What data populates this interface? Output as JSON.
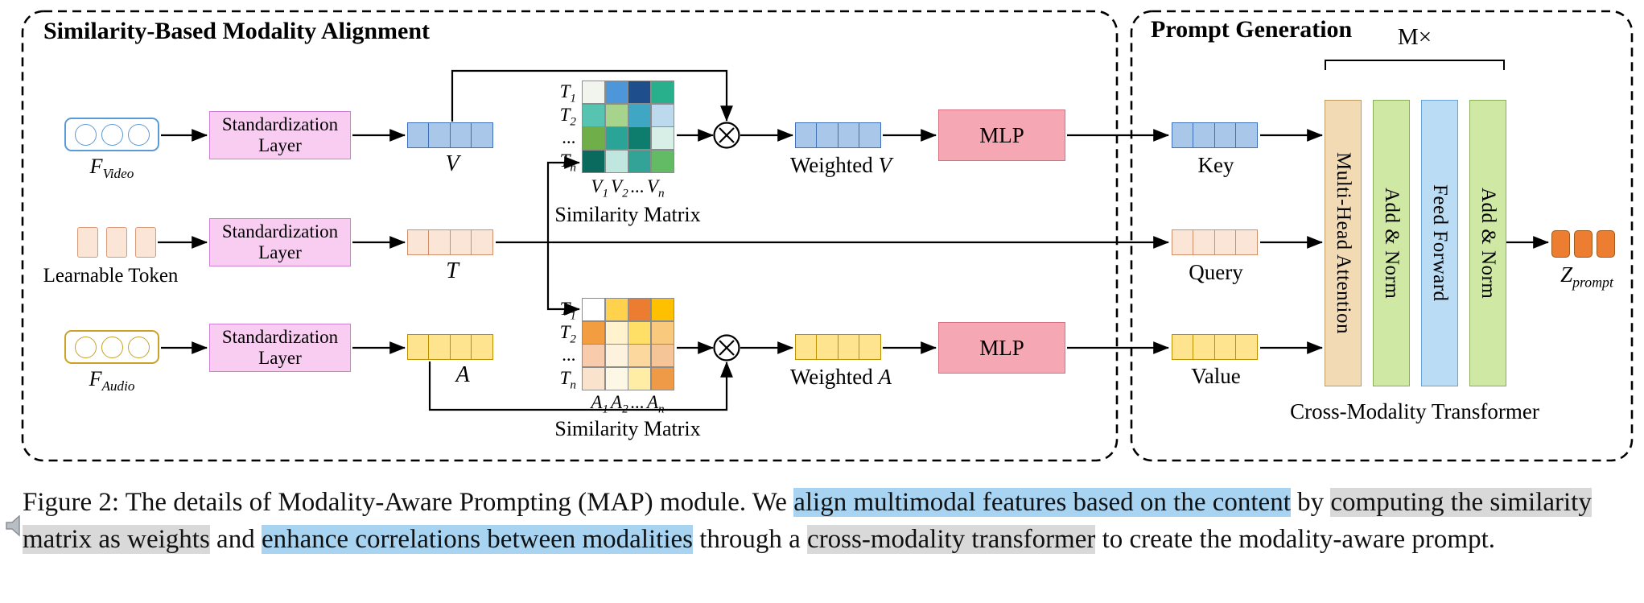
{
  "colors": {
    "std_layer": {
      "fill": "#f8cdf1",
      "border": "#cf7fd4"
    },
    "mlp": {
      "fill": "#f6a7b4",
      "border": "#d4707f"
    },
    "multi_head_attention": {
      "fill": "#f1dab4",
      "border": "#bf9d62"
    },
    "add_norm": {
      "fill": "#cfe8a4",
      "border": "#8ab05a"
    },
    "feed_forward": {
      "fill": "#badcf5",
      "border": "#6aa3d6"
    },
    "video_box_border": "#5b9bd5",
    "audio_box_border": "#c9a227",
    "highlight_blue": "#a8d4f2",
    "highlight_gray": "#d9d9d9"
  },
  "cell_styles": {
    "video": {
      "count": 4,
      "fill": "#a9c7e8",
      "border": "#3f6fb5"
    },
    "token": {
      "count": 4,
      "fill": "#fbe5d6",
      "border": "#cf8f6b"
    },
    "audio": {
      "count": 4,
      "fill": "#ffe48f",
      "border": "#bd9000"
    },
    "z_prompt": {
      "count": 3,
      "fill": "#ed7d31",
      "border": "#9e5a1c",
      "variant": "z"
    },
    "learnable": {
      "count": 3,
      "fill": "#fbe5d6",
      "border": "#d79a79",
      "variant": "gap"
    },
    "video_circles": {
      "count": 3,
      "fill": "#ffffff",
      "border": "#5b9bd5",
      "variant": "circle"
    },
    "audio_circles": {
      "count": 3,
      "fill": "#ffffff",
      "border": "#c9a227",
      "variant": "circle"
    }
  },
  "alignment": {
    "title": "Similarity-Based Modality Alignment",
    "f_video_label": {
      "base": "F",
      "sub": "Video"
    },
    "f_audio_label": {
      "base": "F",
      "sub": "Audio"
    },
    "learnable_token_label": "Learnable Token",
    "std_layer_line1": "Standardization",
    "std_layer_line2": "Layer",
    "v_label": "V",
    "t_label": "T",
    "a_label": "A",
    "weighted_v": {
      "prefix": "Weighted ",
      "var": "V"
    },
    "weighted_a": {
      "prefix": "Weighted ",
      "var": "A"
    },
    "mlp_label": "MLP",
    "similarity_matrix_label": "Similarity Matrix",
    "video_matrix": {
      "row_labels": [
        {
          "base": "T",
          "sub": "1"
        },
        {
          "base": "T",
          "sub": "2"
        },
        {
          "base": "...",
          "sub": ""
        },
        {
          "base": "T",
          "sub": "n"
        }
      ],
      "col_labels": [
        {
          "base": "V",
          "sub": "1"
        },
        {
          "base": "V",
          "sub": "2"
        },
        {
          "base": "...",
          "sub": ""
        },
        {
          "base": "V",
          "sub": "n"
        }
      ],
      "cells": [
        [
          "#f2f4ee",
          "#4d96d9",
          "#1f4e8c",
          "#27b08b"
        ],
        [
          "#56c4b0",
          "#a6d48c",
          "#3fa7c4",
          "#bcd9ee"
        ],
        [
          "#6fae48",
          "#2ba498",
          "#0e7d6e",
          "#d8efe8"
        ],
        [
          "#0b6a5e",
          "#bfe6df",
          "#32a396",
          "#63bb66"
        ]
      ]
    },
    "audio_matrix": {
      "row_labels": [
        {
          "base": "T",
          "sub": "1"
        },
        {
          "base": "T",
          "sub": "2"
        },
        {
          "base": "...",
          "sub": ""
        },
        {
          "base": "T",
          "sub": "n"
        }
      ],
      "col_labels": [
        {
          "base": "A",
          "sub": "1"
        },
        {
          "base": "A",
          "sub": "2"
        },
        {
          "base": "...",
          "sub": ""
        },
        {
          "base": "A",
          "sub": "n"
        }
      ],
      "cells": [
        [
          "#ffffff",
          "#ffd24d",
          "#ec7c30",
          "#ffc000"
        ],
        [
          "#f29d3f",
          "#fff2cc",
          "#ffdf66",
          "#f9c97e"
        ],
        [
          "#f8cbad",
          "#fdf2dd",
          "#fcd79e",
          "#f5c497"
        ],
        [
          "#fae3cd",
          "#fdf7e6",
          "#ffeda6",
          "#ee9a47"
        ]
      ]
    }
  },
  "prompt_generation": {
    "title": "Prompt Generation",
    "repeat_label": "M×",
    "key_label": "Key",
    "query_label": "Query",
    "value_label": "Value",
    "blocks": [
      "Multi-Head Attention",
      "Add & Norm",
      "Feed Forward",
      "Add & Norm"
    ],
    "transformer_caption": "Cross-Modality Transformer",
    "z_prompt_label": {
      "base": "Z",
      "sub": "prompt"
    }
  },
  "caption": {
    "segments": [
      {
        "text": "Figure 2:  The details of Modality-Aware Prompting (MAP) module. We ",
        "highlight": "none"
      },
      {
        "text": "align multimodal features based on the content",
        "highlight": "blue"
      },
      {
        "text": " by ",
        "highlight": "none"
      },
      {
        "text": "computing the similarity matrix as weights",
        "highlight": "gray"
      },
      {
        "text": " and ",
        "highlight": "none"
      },
      {
        "text": "enhance correlations between modalities",
        "highlight": "blue"
      },
      {
        "text": " through a ",
        "highlight": "none"
      },
      {
        "text": "cross-modality transformer",
        "highlight": "gray"
      },
      {
        "text": " to ",
        "highlight": "none"
      },
      {
        "text": "create the modality-aware prompt.",
        "highlight": "none"
      }
    ]
  }
}
